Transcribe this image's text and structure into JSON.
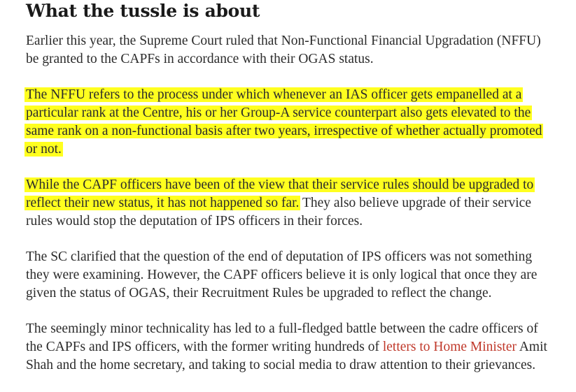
{
  "article": {
    "heading": "What the tussle is about",
    "p1": {
      "line1": "Earlier this year, the Supreme Court ruled that Non-Functional Financial Upgradation (NFFU)",
      "line2": "be granted to the CAPFs in accordance with their OGAS status."
    },
    "p2": {
      "line1": "The NFFU refers to the process under which whenever an IAS officer gets empanelled at a",
      "line2": "particular rank at the Centre, his or her Group-A service counterpart also gets elevated to the",
      "line3": "same rank on a non-functional basis after two years, irrespective of whether actually promoted",
      "line4": "or not."
    },
    "p3": {
      "line1": "While the CAPF officers have been of the view that their service rules should be upgraded to",
      "line2_highlight": "reflect their new status, it has not happened so far.",
      "line2_rest": " They also believe upgrade of their service",
      "line3": "rules would stop the deputation of IPS officers in their forces."
    },
    "p4": {
      "line1": "The SC clarified that the question of the end of deputation of IPS officers was not something",
      "line2": "they were examining. However, the CAPF officers believe it is only logical that once they are",
      "line3": "given the status of OGAS, their Recruitment Rules be upgraded to reflect the change."
    },
    "p5": {
      "line1": "The seemingly minor technicality has led to a full-fledged battle between the cadre officers of",
      "line2_before": "the CAPFs and IPS officers, with the former writing hundreds of ",
      "line2_link": "letters to Home Minister",
      "line2_after": " Amit",
      "line3": "Shah and the home secretary, and taking to social media to draw attention to their grievances."
    }
  },
  "colors": {
    "highlight": "#ffff1f",
    "link": "#c0392b",
    "text": "#2b2b2b"
  }
}
